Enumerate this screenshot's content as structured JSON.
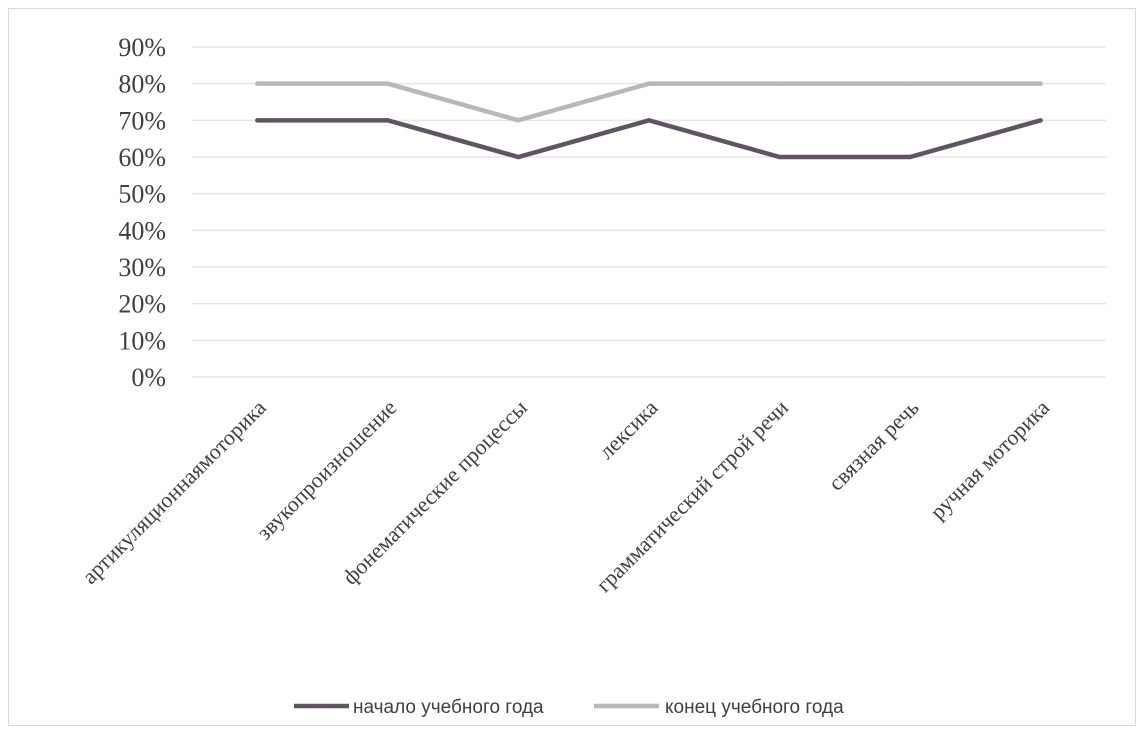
{
  "chart_data": {
    "type": "line",
    "categories": [
      "артикуляционнаямоторика",
      "звукопроизношение",
      "фонематические процессы",
      "лексика",
      "грамматический строй речи",
      "связная речь",
      "ручная моторика"
    ],
    "series": [
      {
        "name": "начало учебного года",
        "values": [
          70,
          70,
          60,
          70,
          60,
          60,
          70
        ],
        "color": "#5f5561"
      },
      {
        "name": "конец учебного года",
        "values": [
          80,
          80,
          70,
          80,
          80,
          80,
          80
        ],
        "color": "#b8b8b8"
      }
    ],
    "y_ticks": [
      "0%",
      "10%",
      "20%",
      "30%",
      "40%",
      "50%",
      "60%",
      "70%",
      "80%",
      "90%"
    ],
    "ylim": [
      0,
      90
    ],
    "grid": true,
    "legend": "bottom",
    "gridline_color": "#e6e6e6",
    "border_color": "#d9d9d9"
  }
}
